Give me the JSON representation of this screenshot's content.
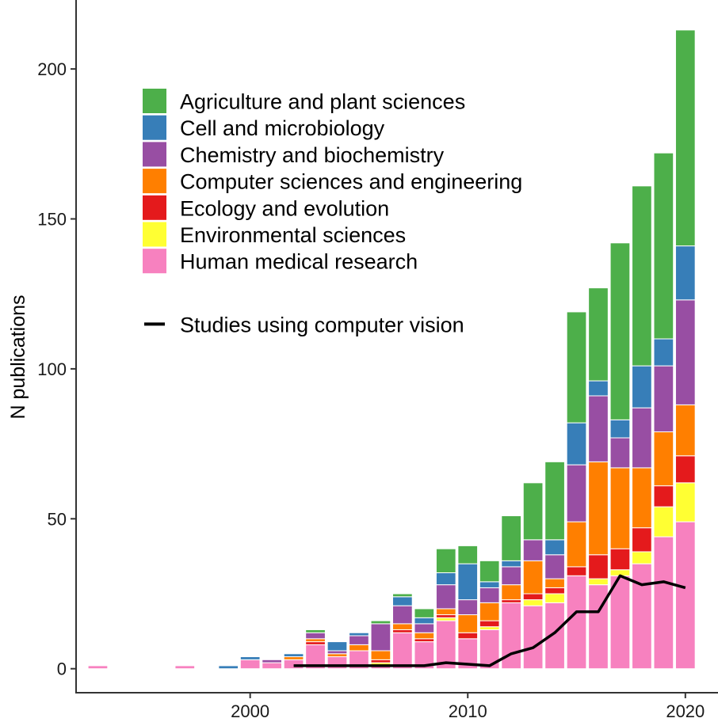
{
  "chart_data": {
    "type": "bar",
    "stacked": true,
    "ylabel": "N publications",
    "xlabel": "",
    "xlim": [
      1992,
      2021.5
    ],
    "ylim": [
      -8,
      223
    ],
    "x_ticks": [
      2000,
      2010,
      2020
    ],
    "y_ticks": [
      0,
      50,
      100,
      150,
      200
    ],
    "grid": false,
    "legend_position": "top-left inside",
    "categories": [
      1993,
      1997,
      1999,
      2000,
      2001,
      2002,
      2003,
      2004,
      2005,
      2006,
      2007,
      2008,
      2009,
      2010,
      2011,
      2012,
      2013,
      2014,
      2015,
      2016,
      2017,
      2018,
      2019,
      2020
    ],
    "series": [
      {
        "name": "Human medical research",
        "color": "#F781BF",
        "values": [
          1,
          1,
          0,
          3,
          2,
          3,
          8,
          4,
          6,
          1,
          12,
          9,
          16,
          10,
          13,
          22,
          21,
          22,
          31,
          28,
          31,
          35,
          44,
          49
        ]
      },
      {
        "name": "Environmental sciences",
        "color": "#FFFF33",
        "values": [
          0,
          0,
          0,
          0,
          0,
          0,
          0,
          0,
          0,
          1,
          0,
          0,
          1,
          0,
          1,
          0,
          2,
          3,
          0,
          2,
          2,
          4,
          10,
          13
        ]
      },
      {
        "name": "Ecology and evolution",
        "color": "#E41A1C",
        "values": [
          0,
          0,
          0,
          0,
          0,
          0,
          1,
          0,
          0,
          1,
          1,
          1,
          1,
          2,
          2,
          1,
          2,
          2,
          3,
          8,
          7,
          8,
          7,
          9
        ]
      },
      {
        "name": "Computer sciences and engineering",
        "color": "#FF7F00",
        "values": [
          0,
          0,
          0,
          0,
          0,
          1,
          1,
          1,
          2,
          3,
          2,
          2,
          2,
          6,
          6,
          5,
          11,
          3,
          15,
          31,
          27,
          20,
          18,
          17
        ]
      },
      {
        "name": "Chemistry and biochemistry",
        "color": "#984EA3",
        "values": [
          0,
          0,
          0,
          0,
          1,
          0,
          2,
          1,
          3,
          9,
          6,
          3,
          8,
          5,
          5,
          6,
          7,
          8,
          19,
          22,
          10,
          20,
          22,
          35
        ]
      },
      {
        "name": "Cell and microbiology",
        "color": "#377EB8",
        "values": [
          0,
          0,
          1,
          1,
          0,
          1,
          0,
          3,
          1,
          0,
          3,
          2,
          4,
          12,
          2,
          2,
          0,
          5,
          14,
          5,
          6,
          14,
          9,
          18
        ]
      },
      {
        "name": "Agriculture and plant sciences",
        "color": "#4DAF4A",
        "values": [
          0,
          0,
          0,
          0,
          0,
          0,
          1,
          0,
          0,
          1,
          1,
          3,
          8,
          6,
          7,
          15,
          19,
          26,
          37,
          31,
          59,
          60,
          62,
          72
        ]
      }
    ],
    "line_series": {
      "name": "Studies using computer vision",
      "color": "#000000",
      "x": [
        2002,
        2003,
        2004,
        2005,
        2006,
        2007,
        2008,
        2009,
        2010,
        2011,
        2012,
        2013,
        2014,
        2015,
        2016,
        2017,
        2018,
        2019,
        2020
      ],
      "y": [
        1,
        1,
        1,
        1,
        1,
        1,
        1,
        2,
        1.5,
        1,
        5,
        7,
        12,
        19,
        19,
        31,
        28,
        29,
        27
      ]
    },
    "legend": [
      {
        "label": "Agriculture and plant sciences",
        "color": "#4DAF4A",
        "kind": "box"
      },
      {
        "label": "Cell and microbiology",
        "color": "#377EB8",
        "kind": "box"
      },
      {
        "label": "Chemistry and biochemistry",
        "color": "#984EA3",
        "kind": "box"
      },
      {
        "label": "Computer sciences and engineering",
        "color": "#FF7F00",
        "kind": "box"
      },
      {
        "label": "Ecology and evolution",
        "color": "#E41A1C",
        "kind": "box"
      },
      {
        "label": "Environmental sciences",
        "color": "#FFFF33",
        "kind": "box"
      },
      {
        "label": "Human medical research",
        "color": "#F781BF",
        "kind": "box"
      },
      {
        "label": "Studies using computer vision",
        "color": "#000000",
        "kind": "line"
      }
    ]
  }
}
